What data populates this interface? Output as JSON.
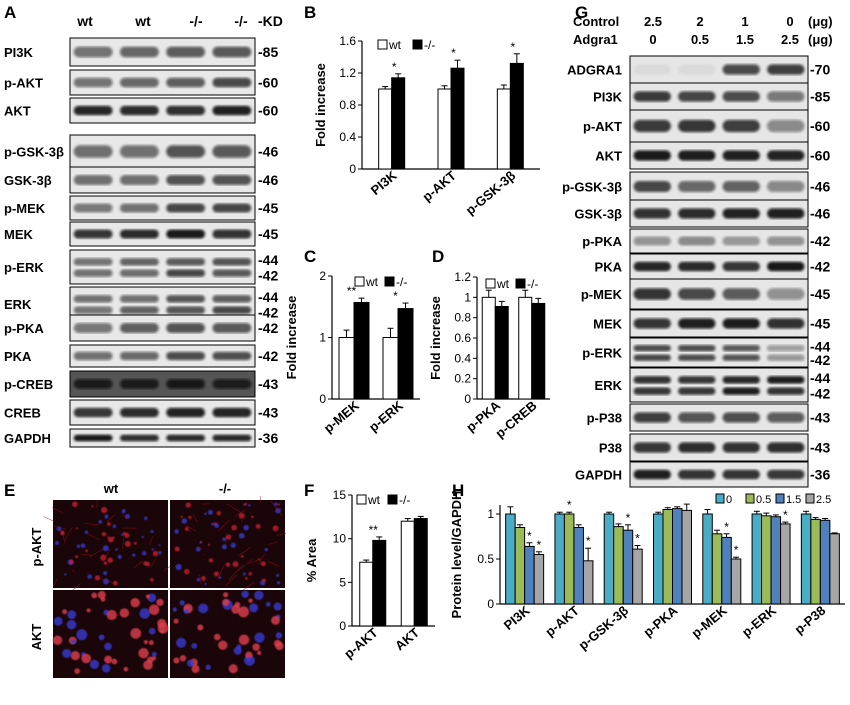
{
  "panel_letters": {
    "A": "A",
    "B": "B",
    "C": "C",
    "D": "D",
    "E": "E",
    "F": "F",
    "G": "G",
    "H": "H"
  },
  "panel_a": {
    "lane_labels": [
      "wt",
      "wt",
      "-/-",
      "-/-"
    ],
    "unit_label": "-KD",
    "blots": [
      {
        "label": "PI3K",
        "mw": [
          "-85"
        ]
      },
      {
        "label": "p-AKT",
        "mw": [
          "-60"
        ]
      },
      {
        "label": "AKT",
        "mw": [
          "-60"
        ]
      },
      {
        "label": "p-GSK-3β",
        "mw": [
          "-46"
        ]
      },
      {
        "label": "GSK-3β",
        "mw": [
          "-46"
        ]
      },
      {
        "label": "p-MEK",
        "mw": [
          "-45"
        ]
      },
      {
        "label": "MEK",
        "mw": [
          "-45"
        ]
      },
      {
        "label": "p-ERK",
        "mw": [
          "-44",
          "-42"
        ]
      },
      {
        "label": "ERK",
        "mw": [
          "-44",
          "-42"
        ]
      },
      {
        "label": "p-PKA",
        "mw": [
          "-42"
        ]
      },
      {
        "label": "PKA",
        "mw": [
          "-42"
        ]
      },
      {
        "label": "p-CREB",
        "mw": [
          "-43"
        ]
      },
      {
        "label": "CREB",
        "mw": [
          "-43"
        ]
      },
      {
        "label": "GAPDH",
        "mw": [
          "-36"
        ]
      }
    ]
  },
  "panel_e": {
    "col_labels": [
      "wt",
      "-/-"
    ],
    "row_labels": [
      "p-AKT",
      "AKT"
    ]
  },
  "panel_g": {
    "header_rows": [
      {
        "label": "Control",
        "values": [
          "2.5",
          "2",
          "1",
          "0"
        ],
        "unit": "(μg)"
      },
      {
        "label": "Adgra1",
        "values": [
          "0",
          "0.5",
          "1.5",
          "2.5"
        ],
        "unit": "(μg)"
      }
    ],
    "blots": [
      {
        "label": "ADGRA1",
        "mw": [
          "-70"
        ]
      },
      {
        "label": "PI3K",
        "mw": [
          "-85"
        ]
      },
      {
        "label": "p-AKT",
        "mw": [
          "-60"
        ]
      },
      {
        "label": "AKT",
        "mw": [
          "-60"
        ]
      },
      {
        "label": "p-GSK-3β",
        "mw": [
          "-46"
        ]
      },
      {
        "label": "GSK-3β",
        "mw": [
          "-46"
        ]
      },
      {
        "label": "p-PKA",
        "mw": [
          "-42"
        ]
      },
      {
        "label": "PKA",
        "mw": [
          "-42"
        ]
      },
      {
        "label": "p-MEK",
        "mw": [
          "-45"
        ]
      },
      {
        "label": "MEK",
        "mw": [
          "-45"
        ]
      },
      {
        "label": "p-ERK",
        "mw": [
          "-44",
          "-42"
        ]
      },
      {
        "label": "ERK",
        "mw": [
          "-44",
          "-42"
        ]
      },
      {
        "label": "p-P38",
        "mw": [
          "-43"
        ]
      },
      {
        "label": "P38",
        "mw": [
          "-43"
        ]
      },
      {
        "label": "GAPDH",
        "mw": [
          "-36"
        ]
      }
    ]
  },
  "colors": {
    "wt": "#ffffff",
    "ko": "#000000",
    "h_0": "#4bacc6",
    "h_05": "#9bbb59",
    "h_15": "#4f81bd",
    "h_25": "#a6a6a6"
  },
  "chart_data": [
    {
      "id": "B",
      "type": "bar",
      "categories": [
        "PI3K",
        "p-AKT",
        "p-GSK-3β"
      ],
      "ylabel": "Fold increase",
      "ylim": [
        0,
        1.6
      ],
      "yticks": [
        "0",
        "0.4",
        "0.8",
        "1.2",
        "1.6"
      ],
      "series": [
        {
          "name": "wt",
          "values": [
            1.0,
            1.0,
            1.0
          ],
          "errors": [
            0.03,
            0.04,
            0.05
          ]
        },
        {
          "name": "-/-",
          "values": [
            1.14,
            1.26,
            1.32
          ],
          "errors": [
            0.05,
            0.1,
            0.12
          ]
        }
      ],
      "annotations": [
        "*",
        "*",
        "*"
      ],
      "legend": "top"
    },
    {
      "id": "C",
      "type": "bar",
      "categories": [
        "p-MEK",
        "p-ERK"
      ],
      "ylabel": "Fold increase",
      "ylim": [
        0,
        2
      ],
      "yticks": [
        "0",
        "1",
        "2"
      ],
      "series": [
        {
          "name": "wt",
          "values": [
            1.0,
            1.0
          ],
          "errors": [
            0.12,
            0.15
          ]
        },
        {
          "name": "-/-",
          "values": [
            1.57,
            1.47
          ],
          "errors": [
            0.07,
            0.09
          ]
        }
      ],
      "annotations": [
        "**",
        "*"
      ],
      "legend": "top"
    },
    {
      "id": "D",
      "type": "bar",
      "categories": [
        "p-PKA",
        "p-CREB"
      ],
      "ylabel": "Fold increase",
      "ylim": [
        0,
        1.2
      ],
      "yticks": [
        "0",
        "0.2",
        "0.4",
        "0.6",
        "0.8",
        "1",
        "1.2"
      ],
      "series": [
        {
          "name": "wt",
          "values": [
            1.0,
            1.0
          ],
          "errors": [
            0.07,
            0.07
          ]
        },
        {
          "name": "-/-",
          "values": [
            0.91,
            0.94
          ],
          "errors": [
            0.05,
            0.05
          ]
        }
      ],
      "annotations": [
        "",
        ""
      ],
      "legend": "top"
    },
    {
      "id": "F",
      "type": "bar",
      "categories": [
        "p-AKT",
        "AKT"
      ],
      "ylabel": "% Area",
      "ylim": [
        0,
        15
      ],
      "yticks": [
        "0",
        "5",
        "10",
        "15"
      ],
      "series": [
        {
          "name": "wt",
          "values": [
            7.3,
            12.0
          ],
          "errors": [
            0.25,
            0.3
          ]
        },
        {
          "name": "-/-",
          "values": [
            9.8,
            12.3
          ],
          "errors": [
            0.4,
            0.25
          ]
        }
      ],
      "annotations": [
        "**",
        ""
      ],
      "legend": "top"
    },
    {
      "id": "H",
      "type": "bar",
      "categories": [
        "PI3K",
        "p-AKT",
        "p-GSK-3β",
        "p-PKA",
        "p-MEK",
        "p-ERK",
        "p-P38"
      ],
      "ylabel": "Protein level/GAPDH",
      "ylim": [
        0,
        1.1
      ],
      "yticks": [
        "0",
        "0.5",
        "1"
      ],
      "series": [
        {
          "name": "0",
          "values": [
            1.0,
            1.0,
            1.0,
            1.0,
            1.0,
            1.0,
            1.0
          ],
          "errors": [
            0.08,
            0.02,
            0.02,
            0.02,
            0.05,
            0.03,
            0.03
          ]
        },
        {
          "name": "0.5",
          "values": [
            0.85,
            1.0,
            0.86,
            1.05,
            0.78,
            0.98,
            0.94
          ],
          "errors": [
            0.03,
            0.02,
            0.03,
            0.02,
            0.04,
            0.03,
            0.02
          ]
        },
        {
          "name": "1.5",
          "values": [
            0.64,
            0.85,
            0.82,
            1.06,
            0.74,
            0.97,
            0.93
          ],
          "errors": [
            0.04,
            0.03,
            0.06,
            0.02,
            0.04,
            0.02,
            0.02
          ]
        },
        {
          "name": "2.5",
          "values": [
            0.55,
            0.48,
            0.61,
            1.04,
            0.5,
            0.89,
            0.78
          ],
          "errors": [
            0.03,
            0.14,
            0.04,
            0.07,
            0.02,
            0.02,
            0.01
          ]
        }
      ],
      "annotations": [
        [
          "",
          "",
          "*",
          "*"
        ],
        [
          "",
          "*",
          "",
          "*"
        ],
        [
          "",
          "",
          "*",
          "*"
        ],
        [
          "",
          "",
          "",
          ""
        ],
        [
          "",
          "",
          "*",
          "*"
        ],
        [
          "",
          "",
          "",
          "*"
        ],
        [
          "",
          "",
          "",
          ""
        ]
      ],
      "legend": "top-right"
    }
  ]
}
